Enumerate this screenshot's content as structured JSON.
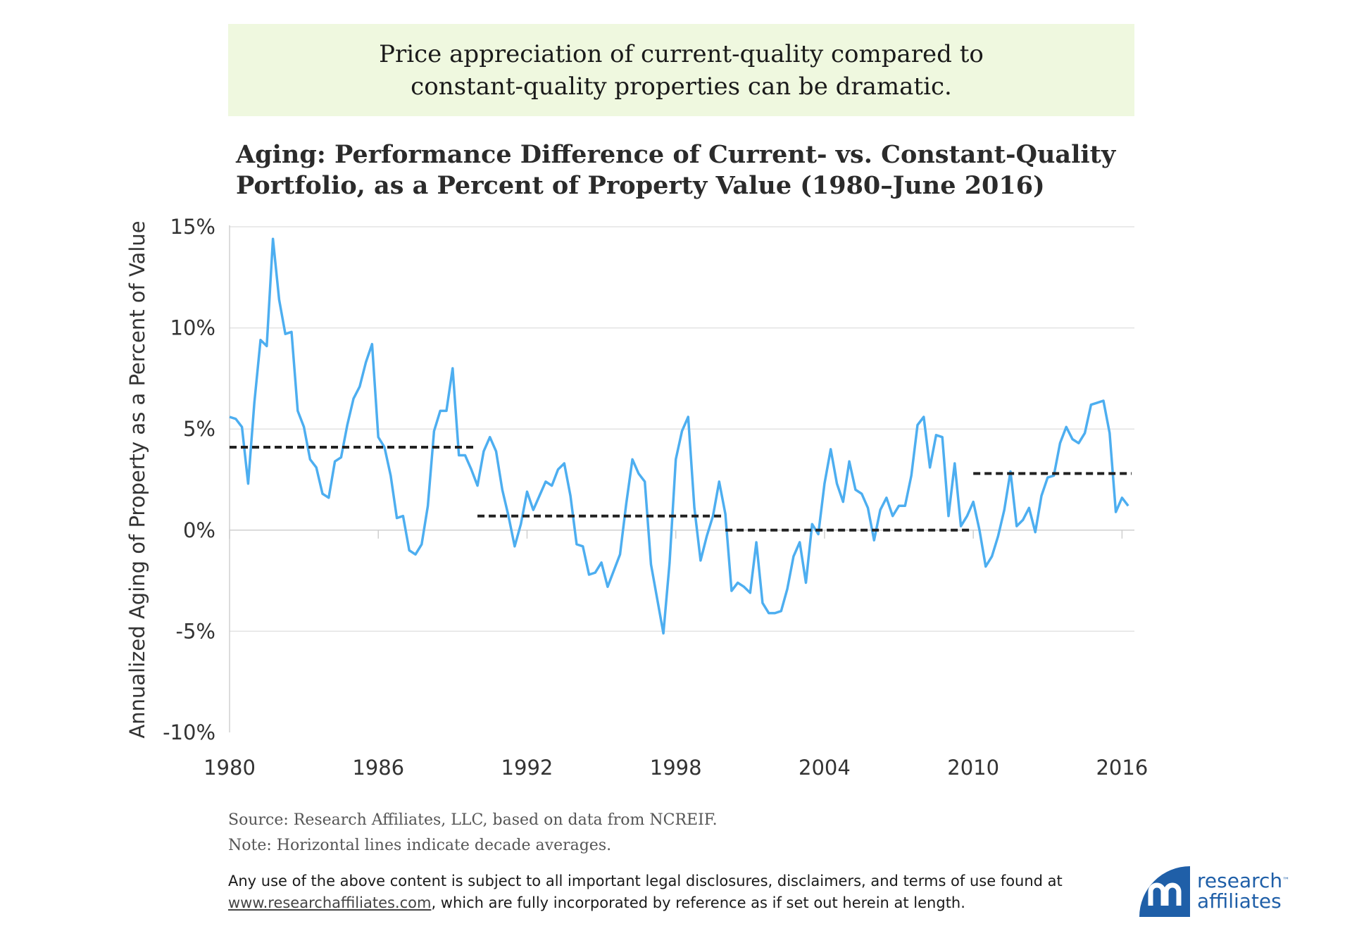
{
  "callout": {
    "text": "Price appreciation of current-quality compared to constant-quality properties can be dramatic.",
    "background": "#eff8df"
  },
  "chart_title": {
    "line1": "Aging: Performance Difference of Current- vs. Constant-Quality",
    "line2": "Portfolio, as a Percent of Property Value (1980–June 2016)"
  },
  "chart_data": {
    "type": "line",
    "title": "Aging: Performance Difference of Current- vs. Constant-Quality Portfolio, as a Percent of Property Value (1980–June 2016)",
    "xlabel": "",
    "ylabel": "Annualized Aging of Property as a Percent of Value",
    "xlim": [
      1980,
      2016.5
    ],
    "ylim": [
      -10,
      15
    ],
    "yticks": [
      15,
      10,
      5,
      0,
      -5,
      -10
    ],
    "ytick_labels": [
      "15%",
      "10%",
      "5%",
      "0%",
      "-5%",
      "-10%"
    ],
    "xticks": [
      1980,
      1986,
      1992,
      1998,
      2004,
      2010,
      2016
    ],
    "xtick_labels": [
      "1980",
      "1986",
      "1992",
      "1998",
      "2004",
      "2010",
      "2016"
    ],
    "grid": "horizontal",
    "series": [
      {
        "name": "Annualized Aging",
        "color": "#4daef0",
        "start_year": 1980,
        "step_years": 0.25,
        "values": [
          5.6,
          5.5,
          5.1,
          2.3,
          6.3,
          9.4,
          9.1,
          14.4,
          11.4,
          9.7,
          9.8,
          5.9,
          5.1,
          3.5,
          3.1,
          1.8,
          1.6,
          3.4,
          3.6,
          5.2,
          6.5,
          7.1,
          8.3,
          9.2,
          4.6,
          4.1,
          2.7,
          0.6,
          0.7,
          -1.0,
          -1.2,
          -0.7,
          1.2,
          4.9,
          5.9,
          5.9,
          8.0,
          3.7,
          3.7,
          3.0,
          2.2,
          3.9,
          4.6,
          3.9,
          2.0,
          0.7,
          -0.8,
          0.3,
          1.9,
          1.0,
          1.7,
          2.4,
          2.2,
          3.0,
          3.3,
          1.7,
          -0.7,
          -0.8,
          -2.2,
          -2.1,
          -1.6,
          -2.8,
          -2.0,
          -1.2,
          1.3,
          3.5,
          2.8,
          2.4,
          -1.7,
          -3.4,
          -5.1,
          -1.6,
          3.5,
          4.9,
          5.6,
          1.1,
          -1.5,
          -0.3,
          0.7,
          2.4,
          0.8,
          -3.0,
          -2.6,
          -2.8,
          -3.1,
          -0.6,
          -3.6,
          -4.1,
          -4.1,
          -4.0,
          -2.9,
          -1.3,
          -0.6,
          -2.6,
          0.3,
          -0.2,
          2.3,
          4.0,
          2.3,
          1.4,
          3.4,
          2.0,
          1.8,
          1.1,
          -0.5,
          1.0,
          1.6,
          0.7,
          1.2,
          1.2,
          2.7,
          5.2,
          5.6,
          3.1,
          4.7,
          4.6,
          0.7,
          3.3,
          0.2,
          0.7,
          1.4,
          0.0,
          -1.8,
          -1.3,
          -0.3,
          1.0,
          2.9,
          0.2,
          0.5,
          1.1,
          -0.1,
          1.7,
          2.6,
          2.7,
          4.3,
          5.1,
          4.5,
          4.3,
          4.8,
          6.2,
          6.3,
          6.4,
          4.8,
          0.9,
          1.6,
          1.2
        ]
      }
    ],
    "decade_averages": [
      {
        "label": "1980s",
        "start": 1980,
        "end": 1990,
        "value": 4.1
      },
      {
        "label": "1990s",
        "start": 1990,
        "end": 2000,
        "value": 0.7
      },
      {
        "label": "2000s",
        "start": 2000,
        "end": 2010,
        "value": 0.0
      },
      {
        "label": "2010s",
        "start": 2010,
        "end": 2016.5,
        "value": 2.8
      }
    ],
    "annotation": "Horizontal lines indicate decade averages."
  },
  "footer": {
    "source": "Source: Research Affiliates, LLC, based on data from NCREIF.",
    "note": "Note: Horizontal lines indicate decade averages.",
    "disclaimer_line1": "Any use of the above content is subject to all important legal disclosures, disclaimers, and terms of use found at",
    "link": "www.researchaffiliates.com",
    "disclaimer_line2_suffix": ", which are fully incorporated by reference as if set out herein at length."
  },
  "logo": {
    "line1": "research",
    "line2": "affiliates",
    "tm": "™",
    "color": "#1f5fa8"
  }
}
